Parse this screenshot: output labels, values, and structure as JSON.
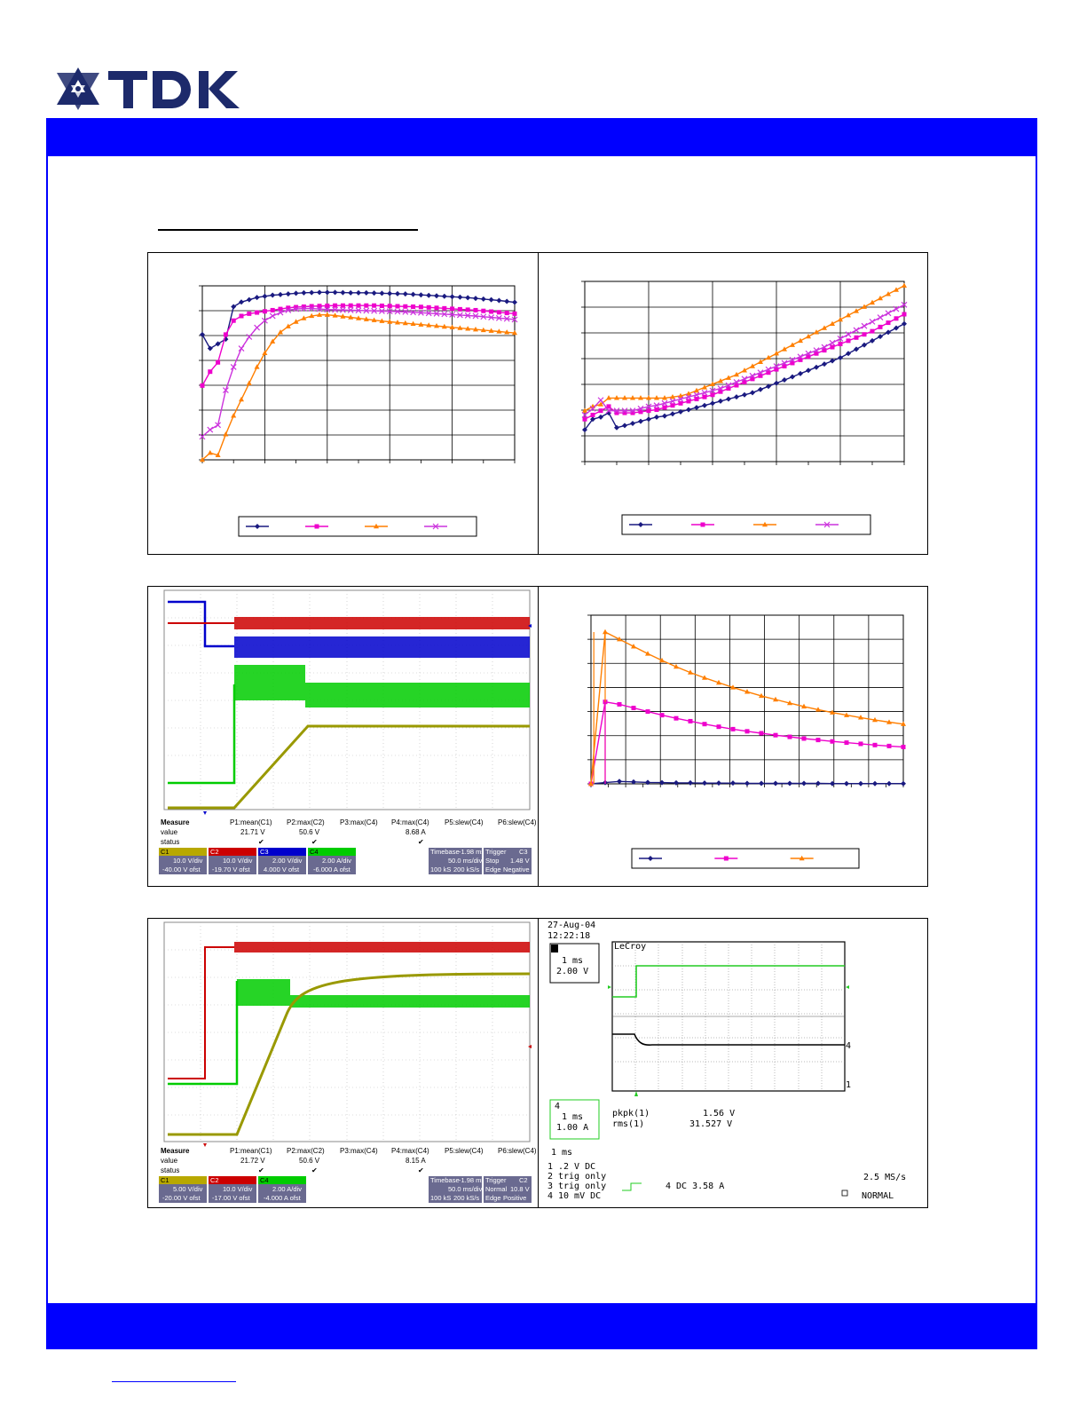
{
  "brand": {
    "name": "TDK",
    "color": "#0000ff"
  },
  "colors": {
    "navy": "#1a1a80",
    "magenta": "#ee00cc",
    "orange": "#ff7f00",
    "violet": "#cc33dd",
    "scope_red": "#cc0000",
    "scope_blue": "#0000cc",
    "scope_green": "#00cc00",
    "scope_olive": "#999900"
  },
  "chart_data": [
    {
      "type": "line",
      "x": [
        0,
        1,
        2,
        3,
        4,
        5,
        6,
        7,
        8,
        9,
        10,
        11,
        12,
        13,
        14,
        15,
        16,
        17,
        18,
        19,
        20,
        21,
        22,
        23,
        24,
        25,
        26,
        27,
        28,
        29,
        30,
        31,
        32,
        33,
        34,
        35,
        36,
        37,
        38,
        39,
        40
      ],
      "series": [
        {
          "marker": "diamond",
          "color": "#1a1a80",
          "values": [
            5.4,
            4.8,
            5.0,
            5.2,
            6.6,
            6.8,
            6.9,
            7.0,
            7.05,
            7.1,
            7.12,
            7.15,
            7.18,
            7.2,
            7.21,
            7.22,
            7.22,
            7.22,
            7.21,
            7.2,
            7.2,
            7.2,
            7.19,
            7.18,
            7.17,
            7.16,
            7.15,
            7.13,
            7.11,
            7.09,
            7.07,
            7.05,
            7.03,
            7.01,
            6.99,
            6.96,
            6.93,
            6.9,
            6.87,
            6.83,
            6.79
          ]
        },
        {
          "marker": "square",
          "color": "#ee00cc",
          "values": [
            3.2,
            3.8,
            4.2,
            5.4,
            6.0,
            6.2,
            6.3,
            6.35,
            6.4,
            6.45,
            6.5,
            6.55,
            6.58,
            6.6,
            6.62,
            6.63,
            6.64,
            6.65,
            6.65,
            6.65,
            6.65,
            6.65,
            6.65,
            6.64,
            6.63,
            6.62,
            6.61,
            6.6,
            6.59,
            6.57,
            6.55,
            6.53,
            6.51,
            6.49,
            6.47,
            6.45,
            6.42,
            6.39,
            6.36,
            6.33,
            6.3
          ]
        },
        {
          "marker": "triangle",
          "color": "#ff7f00",
          "values": [
            0.0,
            0.3,
            0.2,
            1.1,
            1.9,
            2.6,
            3.3,
            4.0,
            4.6,
            5.1,
            5.5,
            5.75,
            5.95,
            6.1,
            6.2,
            6.25,
            6.25,
            6.22,
            6.18,
            6.14,
            6.1,
            6.06,
            6.02,
            5.98,
            5.95,
            5.92,
            5.89,
            5.86,
            5.83,
            5.8,
            5.77,
            5.74,
            5.71,
            5.68,
            5.65,
            5.62,
            5.59,
            5.56,
            5.53,
            5.5,
            5.47
          ]
        },
        {
          "marker": "x",
          "color": "#cc33dd",
          "values": [
            1.0,
            1.3,
            1.5,
            3.0,
            4.0,
            4.8,
            5.3,
            5.7,
            6.0,
            6.2,
            6.35,
            6.45,
            6.5,
            6.52,
            6.52,
            6.5,
            6.48,
            6.47,
            6.46,
            6.45,
            6.44,
            6.43,
            6.42,
            6.41,
            6.4,
            6.39,
            6.38,
            6.36,
            6.34,
            6.32,
            6.3,
            6.28,
            6.26,
            6.24,
            6.22,
            6.2,
            6.17,
            6.14,
            6.11,
            6.08,
            6.05
          ]
        }
      ],
      "grid": true,
      "legend_position": "bottom"
    },
    {
      "type": "line",
      "x": [
        0,
        1,
        2,
        3,
        4,
        5,
        6,
        7,
        8,
        9,
        10,
        11,
        12,
        13,
        14,
        15,
        16,
        17,
        18,
        19,
        20,
        21,
        22,
        23,
        24,
        25,
        26,
        27,
        28,
        29,
        30,
        31,
        32,
        33,
        34,
        35,
        36,
        37,
        38,
        39,
        40
      ],
      "series": [
        {
          "marker": "diamond",
          "color": "#1a1a80",
          "values": [
            1.5,
            2.0,
            2.1,
            2.3,
            1.6,
            1.7,
            1.8,
            1.9,
            2.0,
            2.1,
            2.15,
            2.25,
            2.35,
            2.45,
            2.55,
            2.65,
            2.75,
            2.85,
            2.95,
            3.05,
            3.15,
            3.25,
            3.4,
            3.55,
            3.7,
            3.85,
            4.0,
            4.15,
            4.3,
            4.45,
            4.6,
            4.75,
            4.9,
            5.1,
            5.3,
            5.5,
            5.7,
            5.9,
            6.1,
            6.3,
            6.5
          ]
        },
        {
          "marker": "square",
          "color": "#ee00cc",
          "values": [
            2.0,
            2.2,
            2.4,
            2.6,
            2.3,
            2.3,
            2.3,
            2.35,
            2.4,
            2.45,
            2.55,
            2.65,
            2.75,
            2.85,
            2.95,
            3.05,
            3.15,
            3.3,
            3.45,
            3.6,
            3.75,
            3.9,
            4.05,
            4.2,
            4.35,
            4.5,
            4.65,
            4.8,
            4.95,
            5.1,
            5.25,
            5.4,
            5.55,
            5.7,
            5.85,
            6.0,
            6.15,
            6.35,
            6.55,
            6.75,
            6.95
          ]
        },
        {
          "marker": "triangle",
          "color": "#ff7f00",
          "values": [
            2.4,
            2.6,
            2.7,
            3.0,
            3.0,
            3.0,
            3.0,
            3.0,
            3.0,
            3.0,
            3.0,
            3.05,
            3.1,
            3.2,
            3.35,
            3.5,
            3.65,
            3.8,
            3.95,
            4.1,
            4.3,
            4.5,
            4.7,
            4.9,
            5.1,
            5.3,
            5.5,
            5.7,
            5.9,
            6.1,
            6.3,
            6.5,
            6.7,
            6.9,
            7.1,
            7.3,
            7.5,
            7.7,
            7.9,
            8.1,
            8.3
          ]
        },
        {
          "marker": "x",
          "color": "#cc33dd",
          "values": [
            2.2,
            2.5,
            2.9,
            2.4,
            2.4,
            2.4,
            2.4,
            2.5,
            2.6,
            2.65,
            2.75,
            2.85,
            2.95,
            3.05,
            3.15,
            3.25,
            3.35,
            3.45,
            3.6,
            3.75,
            3.9,
            4.05,
            4.2,
            4.35,
            4.5,
            4.65,
            4.8,
            4.95,
            5.1,
            5.25,
            5.4,
            5.6,
            5.8,
            6.0,
            6.2,
            6.4,
            6.6,
            6.8,
            7.0,
            7.2,
            7.4
          ]
        }
      ],
      "grid": true,
      "legend_position": "bottom"
    },
    {
      "type": "line",
      "x": [
        0,
        2,
        4,
        6,
        8,
        10,
        12,
        14,
        16,
        18,
        20,
        22,
        24,
        26,
        28,
        30,
        32,
        34,
        36,
        38,
        40,
        42,
        44
      ],
      "series": [
        {
          "marker": "diamond",
          "color": "#1a1a80",
          "values": [
            0.0,
            0.05,
            0.1,
            0.08,
            0.06,
            0.05,
            0.04,
            0.04,
            0.03,
            0.03,
            0.03,
            0.02,
            0.02,
            0.02,
            0.02,
            0.02,
            0.02,
            0.01,
            0.01,
            0.01,
            0.01,
            0.01,
            0.01
          ]
        },
        {
          "marker": "square",
          "color": "#ee00cc",
          "values": [
            0.0,
            3.4,
            3.3,
            3.15,
            3.0,
            2.85,
            2.72,
            2.6,
            2.48,
            2.37,
            2.27,
            2.18,
            2.1,
            2.02,
            1.95,
            1.88,
            1.82,
            1.76,
            1.71,
            1.66,
            1.61,
            1.57,
            1.53
          ]
        },
        {
          "marker": "triangle",
          "color": "#ff7f00",
          "values": [
            0.0,
            6.3,
            6.0,
            5.7,
            5.4,
            5.12,
            4.86,
            4.62,
            4.4,
            4.2,
            4.0,
            3.82,
            3.65,
            3.5,
            3.35,
            3.21,
            3.08,
            2.96,
            2.85,
            2.75,
            2.65,
            2.56,
            2.48
          ]
        }
      ],
      "grid": true,
      "legend_position": "bottom"
    }
  ],
  "scope1": {
    "measure": {
      "headers": [
        "Measure",
        "P1:mean(C1)",
        "P2:max(C2)",
        "P3:max(C4)",
        "P4:max(C4)",
        "P5:slew(C4)",
        "P6:slew(C4)"
      ],
      "value_label": "value",
      "values": [
        "21.71 V",
        "50.6 V",
        "",
        "8.68 A",
        "",
        ""
      ],
      "status_label": "status"
    },
    "channels": [
      {
        "id": "C1",
        "volt": "10.0 V/div",
        "offset": "-40.00 V ofst",
        "color": "#999900"
      },
      {
        "id": "C2",
        "volt": "10.0 V/div",
        "offset": "-19.70 V ofst",
        "color": "#cc0000"
      },
      {
        "id": "C3",
        "volt": "2.00 V/div",
        "offset": "4.000 V ofst",
        "color": "#0000cc"
      },
      {
        "id": "C4",
        "volt": "2.00 A/div",
        "offset": "-6.000 A ofst",
        "color": "#00cc00"
      }
    ],
    "timebase": {
      "label": "Timebase",
      "offset": "-1.98 ms",
      "div": "50.0 ms/div",
      "samples": "100 kS",
      "rate": "200 kS/s"
    },
    "trigger": {
      "label": "Trigger",
      "channel": "C3",
      "mode": "Stop",
      "level": "1.48 V",
      "type": "Edge",
      "slope": "Negative"
    }
  },
  "scope2": {
    "measure": {
      "headers": [
        "Measure",
        "P1:mean(C1)",
        "P2:max(C2)",
        "P3:max(C4)",
        "P4:max(C4)",
        "P5:slew(C4)",
        "P6:slew(C4)"
      ],
      "value_label": "value",
      "values": [
        "21.72 V",
        "50.6 V",
        "",
        "8.15 A",
        "",
        ""
      ],
      "status_label": "status"
    },
    "channels": [
      {
        "id": "C1",
        "volt": "5.00 V/div",
        "offset": "-20.00 V ofst",
        "color": "#999900"
      },
      {
        "id": "C2",
        "volt": "10.0 V/div",
        "offset": "-17.00 V ofst",
        "color": "#cc0000"
      },
      {
        "id": "C4",
        "volt": "2.00 A/div",
        "offset": "-4.000 A ofst",
        "color": "#00cc00"
      }
    ],
    "timebase": {
      "label": "Timebase",
      "offset": "-1.98 ms",
      "div": "50.0 ms/div",
      "samples": "100 kS",
      "rate": "200 kS/s"
    },
    "trigger": {
      "label": "Trigger",
      "channel": "C2",
      "mode": "Normal",
      "level": "10.8 V",
      "type": "Edge",
      "slope": "Positive"
    }
  },
  "lecroy": {
    "date": "27-Aug-04",
    "time": "12:22:18",
    "brand": "LeCroy",
    "box1": {
      "channel": "1",
      "time": "1 ms",
      "volt": "2.00 V"
    },
    "box4": {
      "time": "1 ms",
      "amp": "1.00 A"
    },
    "meas1_label": "pkpk(1)",
    "meas1_value": "1.56 V",
    "meas2_label": "rms(1)",
    "meas2_value": "31.527 V",
    "timebase": "1 ms",
    "lines": [
      {
        "ch": "1",
        "text": ".2  V  DC"
      },
      {
        "ch": "2",
        "text": "trig only"
      },
      {
        "ch": "3",
        "text": "trig only"
      },
      {
        "ch": "4",
        "text": "10 mV  DC"
      }
    ],
    "trig_info": "4  DC 3.58 A",
    "rate": "2.5 MS/s",
    "mode": "NORMAL"
  }
}
